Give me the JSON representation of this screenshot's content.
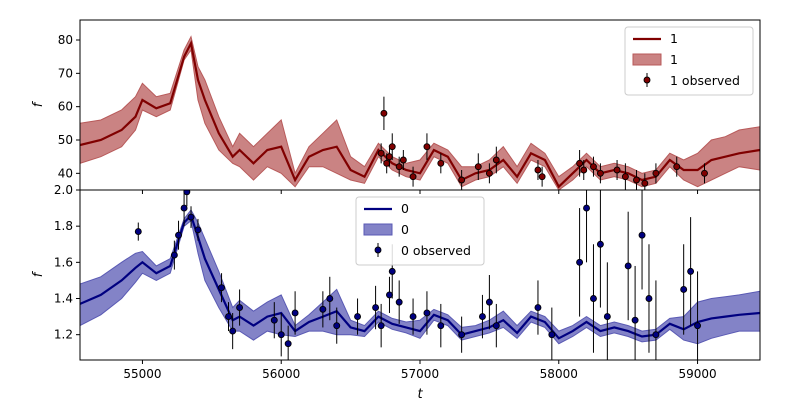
{
  "chart_data": [
    {
      "type": "line",
      "panel": "top",
      "xlabel": "",
      "ylabel": "f",
      "xlim": [
        54550,
        59450
      ],
      "ylim": [
        35,
        86
      ],
      "yticks": [
        40,
        50,
        60,
        70,
        80
      ],
      "line_color": "#800000",
      "band_color": "#b85a5a",
      "legend": {
        "placement": "top-right",
        "entries": [
          "1",
          "1",
          "1 observed"
        ]
      },
      "model": {
        "t": [
          54550,
          54700,
          54850,
          54950,
          55000,
          55100,
          55200,
          55300,
          55350,
          55400,
          55450,
          55550,
          55650,
          55700,
          55800,
          55900,
          56000,
          56100,
          56200,
          56300,
          56400,
          56500,
          56600,
          56700,
          56800,
          56900,
          57000,
          57100,
          57200,
          57300,
          57400,
          57500,
          57600,
          57700,
          57800,
          57900,
          58000,
          58100,
          58200,
          58300,
          58400,
          58500,
          58600,
          58700,
          58800,
          58900,
          59000,
          59100,
          59200,
          59300,
          59450
        ],
        "mean": [
          48.5,
          50,
          53,
          57,
          62,
          59.5,
          61,
          75,
          79,
          68,
          62,
          52,
          45,
          47,
          43,
          47,
          48,
          38,
          45,
          47,
          48,
          41,
          39,
          47,
          43,
          41,
          40,
          47,
          45,
          38,
          40,
          41,
          44,
          39,
          46,
          44,
          36,
          40,
          44,
          40,
          41,
          40,
          38,
          39,
          44,
          41,
          41,
          44,
          45,
          46,
          47
        ],
        "lower": [
          43,
          45,
          48,
          53,
          59,
          57,
          59,
          74,
          77,
          62,
          55,
          47,
          43,
          42,
          38,
          42,
          40,
          36,
          42,
          42,
          40,
          38,
          37,
          45,
          41,
          39,
          38,
          45,
          43,
          36,
          38,
          39,
          42,
          37,
          44,
          42,
          35,
          38,
          42,
          38,
          39,
          38,
          36,
          37,
          42,
          38,
          36,
          38,
          40,
          42,
          41
        ],
        "upper": [
          55,
          56,
          59,
          63,
          67,
          63,
          64,
          77,
          81,
          72,
          68,
          57,
          48,
          52,
          48,
          52,
          56,
          40,
          48,
          52,
          56,
          45,
          42,
          49,
          45,
          43,
          44,
          49,
          47,
          42,
          42,
          44,
          48,
          42,
          49,
          46,
          39,
          42,
          46,
          42,
          43,
          42,
          40,
          41,
          46,
          44,
          46,
          50,
          51,
          53,
          54
        ]
      },
      "observed": {
        "t": [
          56720,
          56740,
          56760,
          56780,
          56800,
          56850,
          56880,
          56950,
          57050,
          57150,
          57300,
          57420,
          57500,
          57550,
          57850,
          57880,
          58150,
          58180,
          58250,
          58300,
          58420,
          58480,
          58560,
          58620,
          58700,
          58850,
          59050
        ],
        "f": [
          46,
          58,
          43,
          45,
          48,
          42,
          44,
          39,
          48,
          43,
          38,
          42,
          40,
          44,
          41,
          39,
          43,
          41,
          42,
          40,
          41,
          39,
          38,
          37,
          40,
          42,
          40
        ],
        "err": [
          3,
          5,
          3,
          3,
          4,
          3,
          3,
          3,
          4,
          3,
          3,
          4,
          3,
          4,
          3,
          3,
          4,
          3,
          3,
          3,
          3,
          4,
          3,
          3,
          3,
          3,
          3
        ]
      }
    },
    {
      "type": "line",
      "panel": "bottom",
      "xlabel": "t",
      "ylabel": "f",
      "xlim": [
        54550,
        59450
      ],
      "ylim": [
        1.06,
        2.0
      ],
      "yticks": [
        1.2,
        1.4,
        1.6,
        1.8,
        2.0
      ],
      "xticks": [
        55000,
        56000,
        57000,
        58000,
        59000
      ],
      "line_color": "#000080",
      "band_color": "#5a5ab4",
      "legend": {
        "placement": "top-center",
        "entries": [
          "0",
          "0",
          "0 observed"
        ]
      },
      "model": {
        "t": [
          54550,
          54700,
          54850,
          54950,
          55000,
          55100,
          55200,
          55300,
          55350,
          55400,
          55450,
          55550,
          55650,
          55700,
          55800,
          55900,
          56000,
          56100,
          56200,
          56300,
          56400,
          56500,
          56600,
          56700,
          56800,
          56900,
          57000,
          57100,
          57200,
          57300,
          57400,
          57500,
          57600,
          57700,
          57800,
          57900,
          58000,
          58100,
          58200,
          58300,
          58400,
          58500,
          58600,
          58700,
          58800,
          58900,
          59000,
          59100,
          59200,
          59300,
          59450
        ],
        "mean": [
          1.37,
          1.42,
          1.5,
          1.57,
          1.6,
          1.54,
          1.58,
          1.82,
          1.86,
          1.74,
          1.62,
          1.45,
          1.28,
          1.3,
          1.25,
          1.3,
          1.32,
          1.22,
          1.27,
          1.3,
          1.33,
          1.24,
          1.22,
          1.3,
          1.26,
          1.24,
          1.22,
          1.31,
          1.28,
          1.2,
          1.22,
          1.24,
          1.28,
          1.21,
          1.3,
          1.27,
          1.18,
          1.22,
          1.27,
          1.22,
          1.24,
          1.22,
          1.19,
          1.2,
          1.26,
          1.23,
          1.27,
          1.29,
          1.3,
          1.31,
          1.32
        ],
        "lower": [
          1.25,
          1.31,
          1.4,
          1.49,
          1.54,
          1.5,
          1.54,
          1.8,
          1.83,
          1.65,
          1.5,
          1.35,
          1.22,
          1.22,
          1.17,
          1.22,
          1.2,
          1.19,
          1.22,
          1.22,
          1.2,
          1.2,
          1.19,
          1.27,
          1.23,
          1.21,
          1.18,
          1.28,
          1.25,
          1.17,
          1.19,
          1.21,
          1.24,
          1.18,
          1.27,
          1.24,
          1.15,
          1.19,
          1.24,
          1.19,
          1.21,
          1.19,
          1.16,
          1.17,
          1.23,
          1.17,
          1.15,
          1.18,
          1.2,
          1.22,
          1.22
        ],
        "upper": [
          1.48,
          1.52,
          1.6,
          1.65,
          1.66,
          1.58,
          1.62,
          1.84,
          1.89,
          1.82,
          1.73,
          1.55,
          1.35,
          1.39,
          1.33,
          1.38,
          1.42,
          1.25,
          1.31,
          1.38,
          1.45,
          1.28,
          1.25,
          1.33,
          1.29,
          1.27,
          1.28,
          1.34,
          1.31,
          1.24,
          1.25,
          1.28,
          1.33,
          1.25,
          1.33,
          1.3,
          1.22,
          1.25,
          1.3,
          1.25,
          1.27,
          1.25,
          1.22,
          1.23,
          1.29,
          1.3,
          1.38,
          1.4,
          1.41,
          1.42,
          1.44
        ]
      },
      "observed": {
        "t": [
          54970,
          55230,
          55260,
          55300,
          55320,
          55350,
          55400,
          55570,
          55620,
          55650,
          55700,
          55950,
          56000,
          56050,
          56100,
          56300,
          56350,
          56400,
          56550,
          56680,
          56720,
          56780,
          56800,
          56850,
          56950,
          57050,
          57150,
          57300,
          57450,
          57500,
          57550,
          57850,
          57950,
          58150,
          58200,
          58250,
          58300,
          58350,
          58500,
          58550,
          58600,
          58650,
          58700,
          58900,
          58950,
          59000
        ],
        "f": [
          1.77,
          1.64,
          1.75,
          1.9,
          1.99,
          1.85,
          1.78,
          1.46,
          1.3,
          1.22,
          1.35,
          1.28,
          1.2,
          1.15,
          1.32,
          1.34,
          1.4,
          1.25,
          1.3,
          1.35,
          1.25,
          1.42,
          1.55,
          1.38,
          1.3,
          1.32,
          1.25,
          1.2,
          1.3,
          1.38,
          1.25,
          1.35,
          1.2,
          1.6,
          1.9,
          1.4,
          1.7,
          1.3,
          1.58,
          1.28,
          1.75,
          1.4,
          1.2,
          1.45,
          1.55,
          1.25
        ],
        "err": [
          0.05,
          0.08,
          0.08,
          0.1,
          0.08,
          0.06,
          0.06,
          0.08,
          0.08,
          0.1,
          0.1,
          0.1,
          0.12,
          0.1,
          0.12,
          0.1,
          0.12,
          0.1,
          0.1,
          0.12,
          0.12,
          0.1,
          0.15,
          0.12,
          0.1,
          0.12,
          0.12,
          0.1,
          0.12,
          0.15,
          0.12,
          0.15,
          0.15,
          0.3,
          0.3,
          0.3,
          0.35,
          0.3,
          0.3,
          0.3,
          0.3,
          0.3,
          0.3,
          0.25,
          0.3,
          0.3
        ]
      }
    }
  ]
}
